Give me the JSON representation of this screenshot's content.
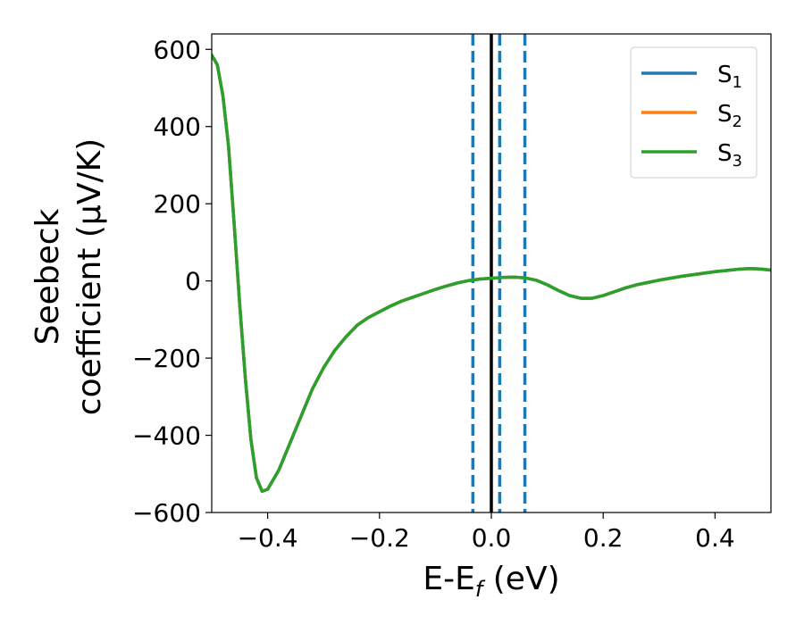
{
  "chart_data": {
    "type": "line",
    "xlabel": "E-E",
    "xlabel_sub": "f",
    "xlabel_unit": " (eV)",
    "ylabel_line1": "Seebeck",
    "ylabel_line2": "coefficient  (μV/K)",
    "xlim": [
      -0.5,
      0.5
    ],
    "ylim": [
      -600,
      640
    ],
    "xticks": [
      -0.4,
      -0.2,
      0.0,
      0.2,
      0.4
    ],
    "xtick_labels": [
      "−0.4",
      "−0.2",
      "0.0",
      "0.2",
      "0.4"
    ],
    "yticks": [
      600,
      400,
      200,
      0,
      -200,
      -400,
      -600
    ],
    "ytick_labels": [
      "600",
      "400",
      "200",
      "0",
      "−200",
      "−400",
      "−600"
    ],
    "grid": false,
    "legend_position": "top-right",
    "series": [
      {
        "name": "S",
        "sub": "1",
        "color": "#1f77b4",
        "x": [
          -0.5,
          -0.49,
          -0.48,
          -0.47,
          -0.46,
          -0.45,
          -0.44,
          -0.43,
          -0.42,
          -0.41,
          -0.4,
          -0.38,
          -0.36,
          -0.34,
          -0.32,
          -0.3,
          -0.28,
          -0.26,
          -0.24,
          -0.22,
          -0.2,
          -0.18,
          -0.16,
          -0.14,
          -0.12,
          -0.1,
          -0.08,
          -0.06,
          -0.04,
          -0.02,
          0.0,
          0.02,
          0.04,
          0.06,
          0.08,
          0.1,
          0.12,
          0.14,
          0.16,
          0.18,
          0.2,
          0.22,
          0.24,
          0.26,
          0.28,
          0.3,
          0.32,
          0.34,
          0.36,
          0.38,
          0.4,
          0.42,
          0.44,
          0.46,
          0.48,
          0.5
        ],
        "y": [
          585,
          560,
          480,
          350,
          150,
          -60,
          -250,
          -410,
          -510,
          -545,
          -540,
          -490,
          -420,
          -350,
          -280,
          -225,
          -180,
          -145,
          -115,
          -95,
          -80,
          -65,
          -52,
          -42,
          -32,
          -22,
          -13,
          -5,
          1,
          5,
          7,
          9,
          10,
          8,
          2,
          -10,
          -25,
          -38,
          -45,
          -45,
          -38,
          -28,
          -18,
          -10,
          -4,
          2,
          7,
          12,
          16,
          20,
          24,
          27,
          30,
          32,
          31,
          28
        ]
      },
      {
        "name": "S",
        "sub": "2",
        "color": "#ff7f0e",
        "x": [
          -0.5,
          -0.49,
          -0.48,
          -0.47,
          -0.46,
          -0.45,
          -0.44,
          -0.43,
          -0.42,
          -0.41,
          -0.4,
          -0.38,
          -0.36,
          -0.34,
          -0.32,
          -0.3,
          -0.28,
          -0.26,
          -0.24,
          -0.22,
          -0.2,
          -0.18,
          -0.16,
          -0.14,
          -0.12,
          -0.1,
          -0.08,
          -0.06,
          -0.04,
          -0.02,
          0.0,
          0.02,
          0.04,
          0.06,
          0.08,
          0.1,
          0.12,
          0.14,
          0.16,
          0.18,
          0.2,
          0.22,
          0.24,
          0.26,
          0.28,
          0.3,
          0.32,
          0.34,
          0.36,
          0.38,
          0.4,
          0.42,
          0.44,
          0.46,
          0.48,
          0.5
        ],
        "y": [
          585,
          560,
          480,
          350,
          150,
          -60,
          -250,
          -410,
          -510,
          -545,
          -540,
          -490,
          -420,
          -350,
          -280,
          -225,
          -180,
          -145,
          -115,
          -95,
          -80,
          -65,
          -52,
          -42,
          -32,
          -22,
          -13,
          -5,
          1,
          5,
          7,
          9,
          10,
          8,
          2,
          -10,
          -25,
          -38,
          -45,
          -45,
          -38,
          -28,
          -18,
          -10,
          -4,
          2,
          7,
          12,
          16,
          20,
          24,
          27,
          30,
          32,
          31,
          28
        ]
      },
      {
        "name": "S",
        "sub": "3",
        "color": "#2ca02c",
        "x": [
          -0.5,
          -0.49,
          -0.48,
          -0.47,
          -0.46,
          -0.45,
          -0.44,
          -0.43,
          -0.42,
          -0.41,
          -0.4,
          -0.38,
          -0.36,
          -0.34,
          -0.32,
          -0.3,
          -0.28,
          -0.26,
          -0.24,
          -0.22,
          -0.2,
          -0.18,
          -0.16,
          -0.14,
          -0.12,
          -0.1,
          -0.08,
          -0.06,
          -0.04,
          -0.02,
          0.0,
          0.02,
          0.04,
          0.06,
          0.08,
          0.1,
          0.12,
          0.14,
          0.16,
          0.18,
          0.2,
          0.22,
          0.24,
          0.26,
          0.28,
          0.3,
          0.32,
          0.34,
          0.36,
          0.38,
          0.4,
          0.42,
          0.44,
          0.46,
          0.48,
          0.5
        ],
        "y": [
          585,
          560,
          480,
          350,
          150,
          -60,
          -250,
          -410,
          -510,
          -545,
          -540,
          -490,
          -420,
          -350,
          -280,
          -225,
          -180,
          -145,
          -115,
          -95,
          -80,
          -65,
          -52,
          -42,
          -32,
          -22,
          -13,
          -5,
          1,
          5,
          7,
          9,
          10,
          8,
          2,
          -10,
          -25,
          -38,
          -45,
          -45,
          -38,
          -28,
          -18,
          -10,
          -4,
          2,
          7,
          12,
          16,
          20,
          24,
          27,
          30,
          32,
          31,
          28
        ]
      }
    ],
    "vlines": [
      {
        "x": -0.033,
        "color": "#1f77b4",
        "style": "dashed"
      },
      {
        "x": 0.0,
        "color": "#000000",
        "style": "solid"
      },
      {
        "x": 0.015,
        "color": "#1f77b4",
        "style": "dashed"
      },
      {
        "x": 0.06,
        "color": "#1f77b4",
        "style": "dashed"
      }
    ]
  }
}
